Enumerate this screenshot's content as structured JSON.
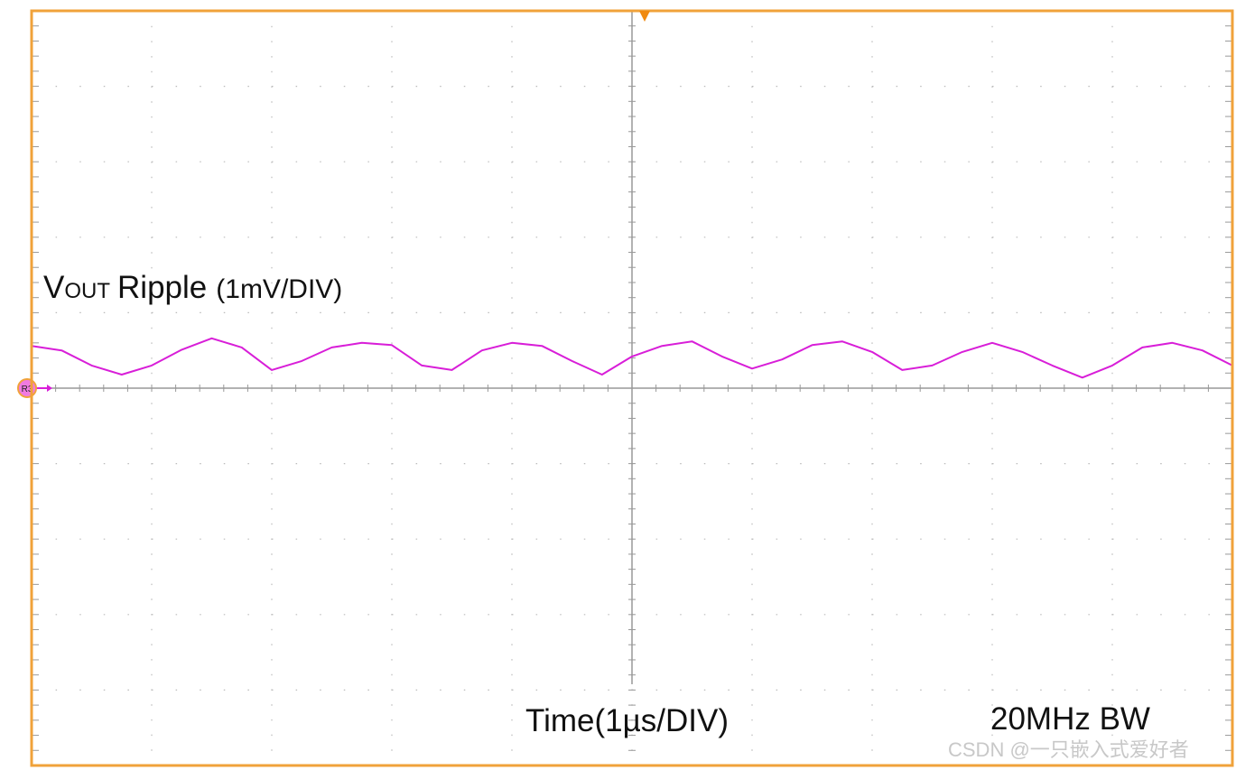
{
  "chart_data": {
    "type": "line",
    "label": {
      "main": "V",
      "sub": "OUT",
      "rest": "Ripple",
      "scale": "(1mV/DIV)"
    },
    "xlabel": "Time(1µs/DIV)",
    "bandwidth": "20MHz BW",
    "reference": "R3",
    "watermark": "CSDN @一只嵌入式爱好者",
    "x": [
      0,
      0.25,
      0.5,
      0.75,
      1,
      1.25,
      1.5,
      1.75,
      2,
      2.25,
      2.5,
      2.75,
      3,
      3.25,
      3.5,
      3.75,
      4,
      4.25,
      4.5,
      4.75,
      5,
      5.25,
      5.5,
      5.75,
      6,
      6.25,
      6.5,
      6.75,
      7,
      7.25,
      7.5,
      7.75,
      8,
      8.25,
      8.5,
      8.75,
      9,
      9.25,
      9.5,
      9.75,
      10
    ],
    "series": [
      {
        "color": "#d81ed8",
        "values": [
          0.56,
          0.5,
          0.3,
          0.18,
          0.3,
          0.51,
          0.66,
          0.54,
          0.24,
          0.36,
          0.54,
          0.6,
          0.57,
          0.3,
          0.24,
          0.5,
          0.6,
          0.56,
          0.36,
          0.18,
          0.42,
          0.56,
          0.62,
          0.42,
          0.26,
          0.38,
          0.57,
          0.62,
          0.48,
          0.24,
          0.3,
          0.48,
          0.6,
          0.48,
          0.3,
          0.14,
          0.3,
          0.54,
          0.6,
          0.5,
          0.3
        ]
      }
    ],
    "xlim": [
      0,
      10
    ],
    "ylim": [
      -5,
      5
    ],
    "xticks": [
      0,
      1,
      2,
      3,
      4,
      5,
      6,
      7,
      8,
      9,
      10
    ],
    "yticks": [
      -5,
      -4,
      -3,
      -2,
      -1,
      0,
      1,
      2,
      3,
      4,
      5
    ],
    "grid": true
  }
}
